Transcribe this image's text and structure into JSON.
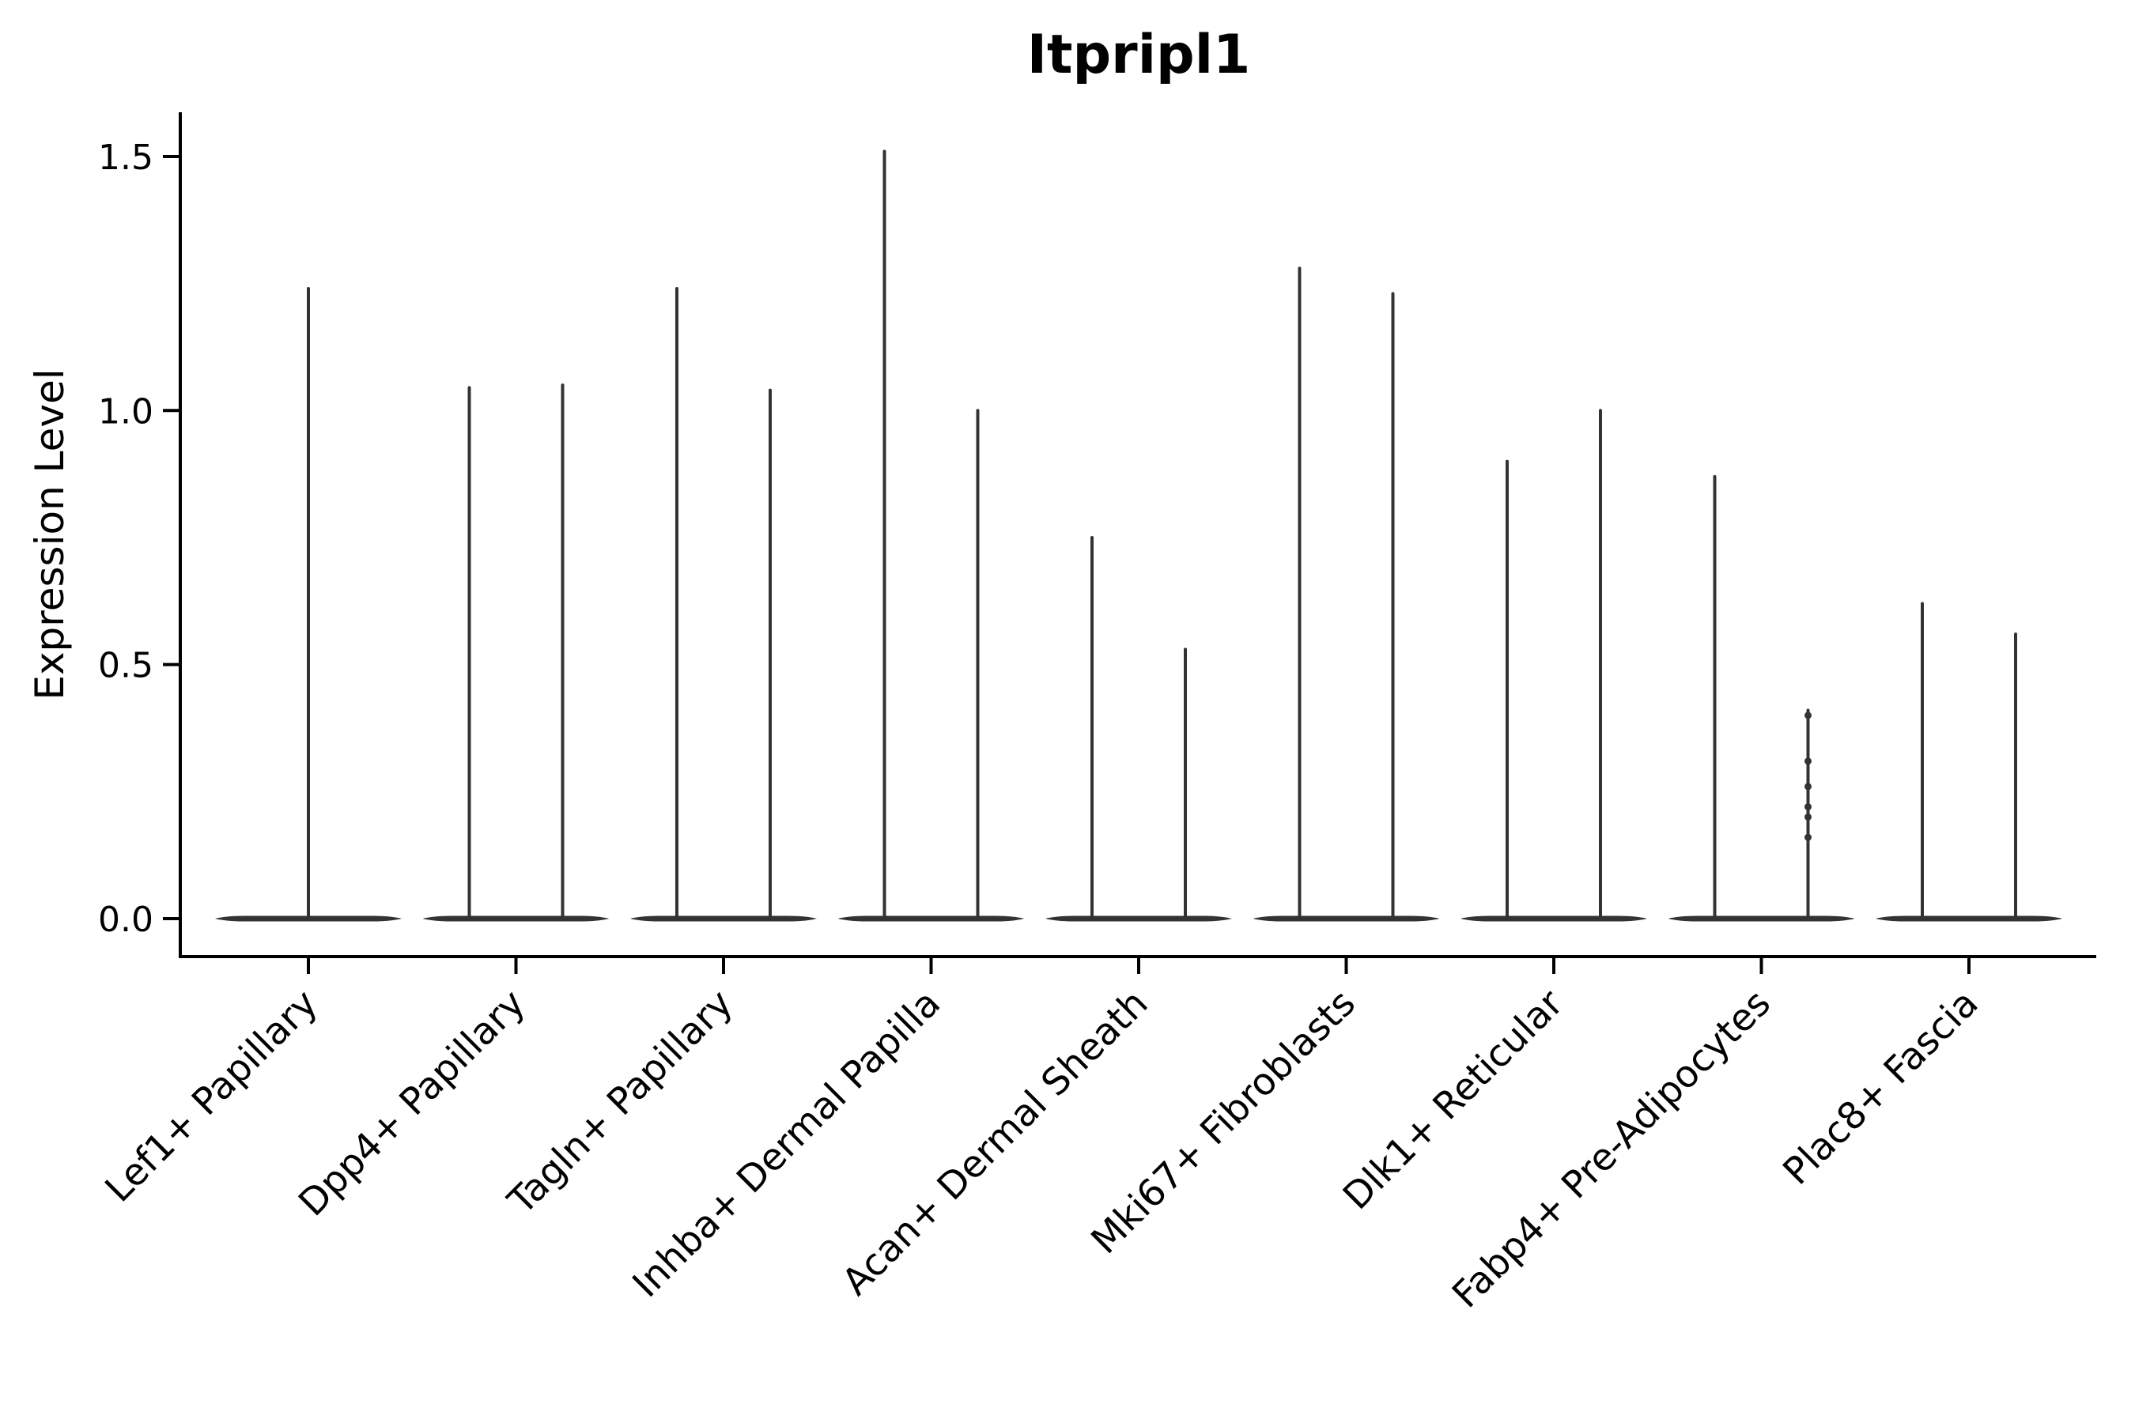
{
  "chart_data": {
    "type": "violin",
    "title": "Itpripl1",
    "ylabel": "Expression Level",
    "xlabel": "",
    "ylim": [
      0,
      1.58
    ],
    "yticks": [
      0.0,
      0.5,
      1.0,
      1.5
    ],
    "ytick_labels": [
      "0.0",
      "0.5",
      "1.0",
      "1.5"
    ],
    "grid": "off",
    "legend": "none",
    "x_label_rotation_deg": 45,
    "categories": [
      "Lef1+ Papillary",
      "Dpp4+ Papillary",
      "Tagln+ Papillary",
      "Inhba+ Dermal Papilla",
      "Acan+ Dermal Sheath",
      "Mki67+ Fibroblasts",
      "Dlk1+ Reticular",
      "Fabp4+ Pre-Adipocytes",
      "Plac8+ Fascia"
    ],
    "series": [
      {
        "category": "Lef1+ Papillary",
        "violins": [
          {
            "baseline_value": 0.0,
            "max": 1.24
          }
        ]
      },
      {
        "category": "Dpp4+ Papillary",
        "violins": [
          {
            "baseline_value": 0.0,
            "max": 1.045
          },
          {
            "baseline_value": 0.0,
            "max": 1.05
          }
        ]
      },
      {
        "category": "Tagln+ Papillary",
        "violins": [
          {
            "baseline_value": 0.0,
            "max": 1.24
          },
          {
            "baseline_value": 0.0,
            "max": 1.04
          }
        ]
      },
      {
        "category": "Inhba+ Dermal Papilla",
        "violins": [
          {
            "baseline_value": 0.0,
            "max": 1.51
          },
          {
            "baseline_value": 0.0,
            "max": 1.0
          }
        ]
      },
      {
        "category": "Acan+ Dermal Sheath",
        "violins": [
          {
            "baseline_value": 0.0,
            "max": 0.75
          },
          {
            "baseline_value": 0.0,
            "max": 0.53
          }
        ]
      },
      {
        "category": "Mki67+ Fibroblasts",
        "violins": [
          {
            "baseline_value": 0.0,
            "max": 1.28
          },
          {
            "baseline_value": 0.0,
            "max": 1.23
          }
        ]
      },
      {
        "category": "Dlk1+ Reticular",
        "violins": [
          {
            "baseline_value": 0.0,
            "max": 0.9
          },
          {
            "baseline_value": 0.0,
            "max": 1.0
          }
        ]
      },
      {
        "category": "Fabp4+ Pre-Adipocytes",
        "violins": [
          {
            "baseline_value": 0.0,
            "max": 0.87
          },
          {
            "baseline_value": 0.0,
            "max": 0.41,
            "points": [
              0.4,
              0.31,
              0.26,
              0.22,
              0.2,
              0.16
            ]
          }
        ]
      },
      {
        "category": "Plac8+ Fascia",
        "violins": [
          {
            "baseline_value": 0.0,
            "max": 0.62
          },
          {
            "baseline_value": 0.0,
            "max": 0.56
          }
        ]
      }
    ],
    "colors": {
      "violin": "#333333",
      "axis": "#000000",
      "background": "#ffffff"
    }
  }
}
